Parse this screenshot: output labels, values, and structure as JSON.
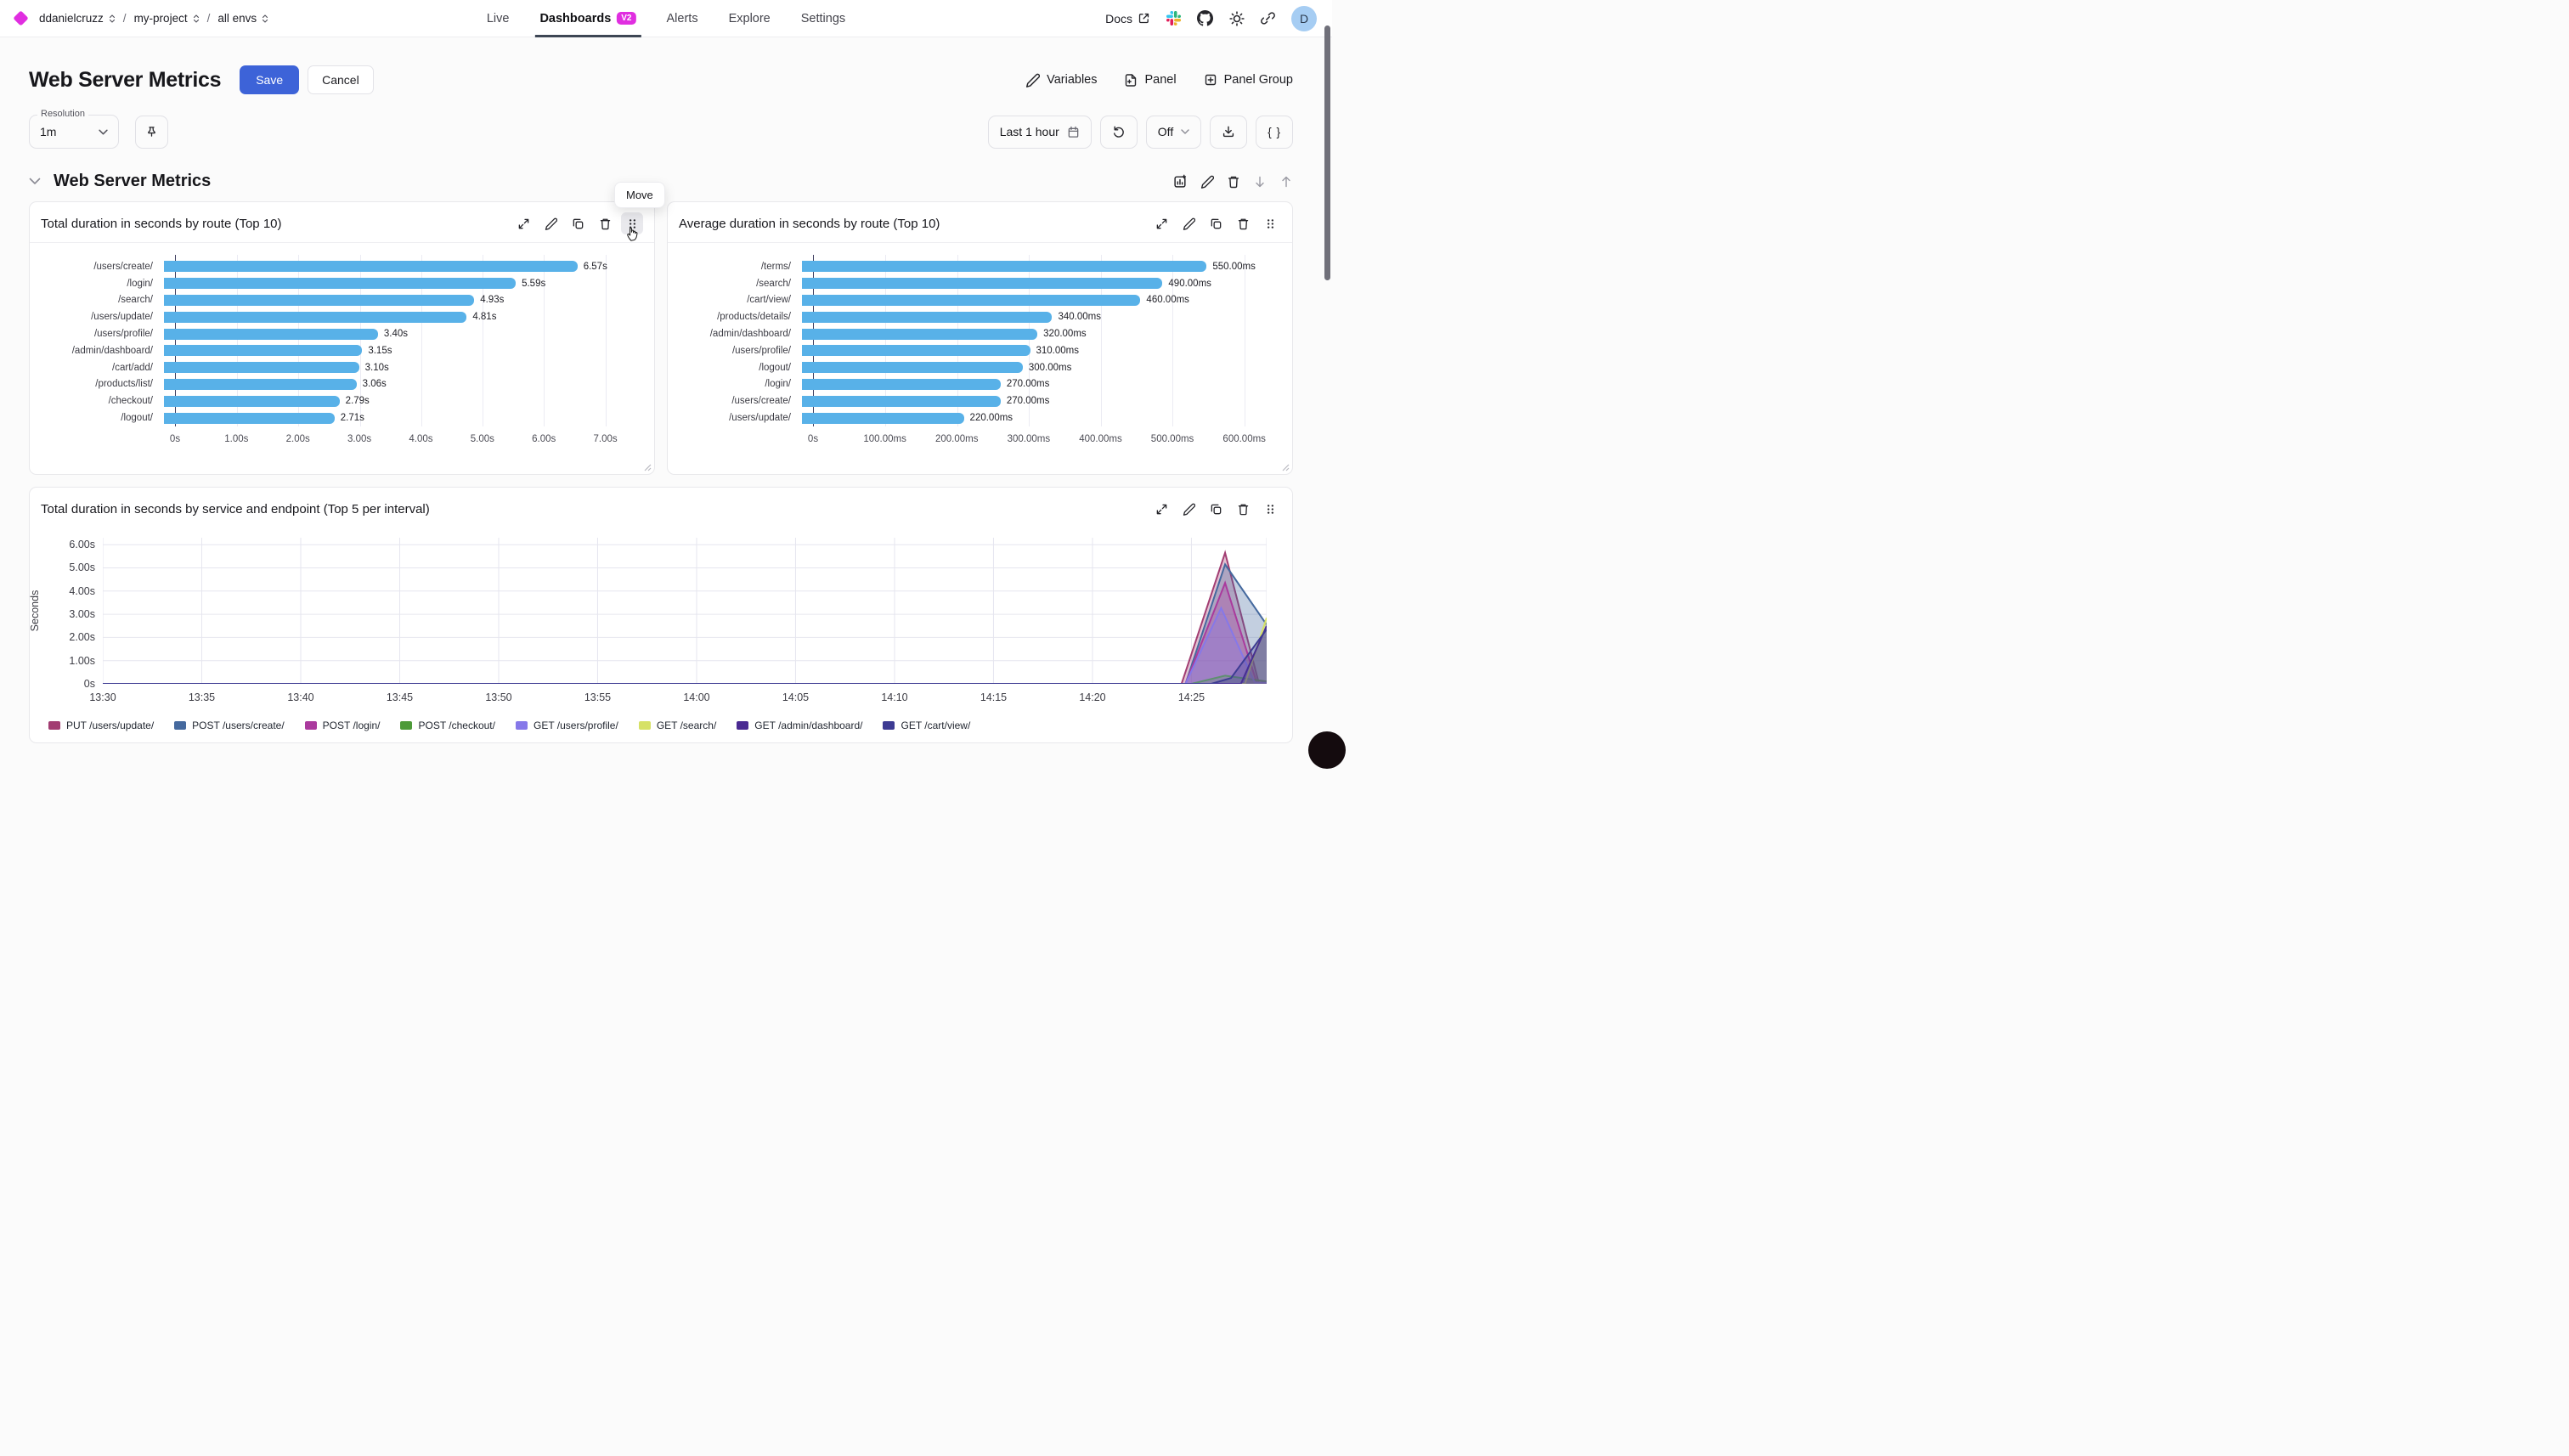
{
  "topbar": {
    "org": "ddanielcruzz",
    "project": "my-project",
    "env": "all envs",
    "tabs": [
      "Live",
      "Dashboards",
      "Alerts",
      "Explore",
      "Settings"
    ],
    "active_tab": "Dashboards",
    "dashboards_badge": "V2",
    "docs": "Docs",
    "avatar_initial": "D"
  },
  "header": {
    "title": "Web Server Metrics",
    "save": "Save",
    "cancel": "Cancel",
    "variables": "Variables",
    "panel": "Panel",
    "panel_group": "Panel Group"
  },
  "toolbar": {
    "resolution_label": "Resolution",
    "resolution_value": "1m",
    "time_range": "Last 1 hour",
    "refresh_state": "Off",
    "code_button": "{ }"
  },
  "section": {
    "title": "Web Server Metrics",
    "move_tooltip": "Move"
  },
  "colors": {
    "accent_blue": "#3d63d8",
    "brand_magenta": "#e02ee0",
    "bar_blue": "#58b1e8",
    "active_tab_underline": "#3d4654"
  },
  "chart_data": [
    {
      "type": "bar",
      "orientation": "horizontal",
      "title": "Total duration in seconds by route (Top 10)",
      "categories": [
        "/users/create/",
        "/login/",
        "/search/",
        "/users/update/",
        "/users/profile/",
        "/admin/dashboard/",
        "/cart/add/",
        "/products/list/",
        "/checkout/",
        "/logout/"
      ],
      "values": [
        6.57,
        5.59,
        4.93,
        4.81,
        3.4,
        3.15,
        3.1,
        3.06,
        2.79,
        2.71
      ],
      "value_labels": [
        "6.57s",
        "5.59s",
        "4.93s",
        "4.81s",
        "3.40s",
        "3.15s",
        "3.10s",
        "3.06s",
        "2.79s",
        "2.71s"
      ],
      "x_ticks": [
        {
          "label": "0s",
          "v": 0
        },
        {
          "label": "1.00s",
          "v": 1
        },
        {
          "label": "2.00s",
          "v": 2
        },
        {
          "label": "3.00s",
          "v": 3
        },
        {
          "label": "4.00s",
          "v": 4
        },
        {
          "label": "5.00s",
          "v": 5
        },
        {
          "label": "6.00s",
          "v": 6
        },
        {
          "label": "7.00s",
          "v": 7
        }
      ],
      "xlim": [
        0,
        7.6
      ],
      "bar_color": "#58b1e8",
      "grid": true
    },
    {
      "type": "bar",
      "orientation": "horizontal",
      "title": "Average duration in seconds by route (Top 10)",
      "categories": [
        "/terms/",
        "/search/",
        "/cart/view/",
        "/products/details/",
        "/admin/dashboard/",
        "/users/profile/",
        "/logout/",
        "/login/",
        "/users/create/",
        "/users/update/"
      ],
      "values": [
        550,
        490,
        460,
        340,
        320,
        310,
        300,
        270,
        270,
        220
      ],
      "value_labels": [
        "550.00ms",
        "490.00ms",
        "460.00ms",
        "340.00ms",
        "320.00ms",
        "310.00ms",
        "300.00ms",
        "270.00ms",
        "270.00ms",
        "220.00ms"
      ],
      "x_ticks": [
        {
          "label": "0s",
          "v": 0
        },
        {
          "label": "100.00ms",
          "v": 100
        },
        {
          "label": "200.00ms",
          "v": 200
        },
        {
          "label": "300.00ms",
          "v": 300
        },
        {
          "label": "400.00ms",
          "v": 400
        },
        {
          "label": "500.00ms",
          "v": 500
        },
        {
          "label": "600.00ms",
          "v": 600
        }
      ],
      "xlim": [
        0,
        650
      ],
      "bar_color": "#58b1e8",
      "grid": true
    },
    {
      "type": "area",
      "title": "Total duration in seconds by service and endpoint (Top 5 per interval)",
      "ylabel": "Seconds",
      "y_ticks": [
        {
          "label": "0s",
          "v": 0
        },
        {
          "label": "1.00s",
          "v": 1
        },
        {
          "label": "2.00s",
          "v": 2
        },
        {
          "label": "3.00s",
          "v": 3
        },
        {
          "label": "4.00s",
          "v": 4
        },
        {
          "label": "5.00s",
          "v": 5
        },
        {
          "label": "6.00s",
          "v": 6
        }
      ],
      "x_ticks": [
        {
          "label": "13:30",
          "v": 0
        },
        {
          "label": "13:35",
          "v": 5
        },
        {
          "label": "13:40",
          "v": 10
        },
        {
          "label": "13:45",
          "v": 15
        },
        {
          "label": "13:50",
          "v": 20
        },
        {
          "label": "13:55",
          "v": 25
        },
        {
          "label": "14:00",
          "v": 30
        },
        {
          "label": "14:05",
          "v": 35
        },
        {
          "label": "14:10",
          "v": 40
        },
        {
          "label": "14:15",
          "v": 45
        },
        {
          "label": "14:20",
          "v": 50
        },
        {
          "label": "14:25",
          "v": 55
        }
      ],
      "xlim": [
        0,
        58.8
      ],
      "ylim": [
        0,
        6.3
      ],
      "grid": true,
      "legend_position": "bottom",
      "series": [
        {
          "name": "PUT /users/update/",
          "color": "#a23d72",
          "points": [
            [
              0,
              0
            ],
            [
              54.5,
              0
            ],
            [
              56.7,
              5.65
            ],
            [
              58.4,
              0.05
            ],
            [
              58.8,
              0.05
            ]
          ]
        },
        {
          "name": "POST /users/create/",
          "color": "#45699e",
          "points": [
            [
              0,
              0
            ],
            [
              54.7,
              0
            ],
            [
              56.7,
              5.15
            ],
            [
              58.8,
              2.55
            ]
          ]
        },
        {
          "name": "POST /login/",
          "color": "#aa3a9d",
          "points": [
            [
              0,
              0
            ],
            [
              54.7,
              0
            ],
            [
              56.7,
              4.35
            ],
            [
              58.3,
              0.05
            ],
            [
              58.8,
              0.05
            ]
          ]
        },
        {
          "name": "POST /checkout/",
          "color": "#4d9a39",
          "points": [
            [
              0,
              0
            ],
            [
              55,
              0
            ],
            [
              56.7,
              0.35
            ],
            [
              58.8,
              0.1
            ]
          ]
        },
        {
          "name": "GET /users/profile/",
          "color": "#8678e9",
          "points": [
            [
              0,
              0
            ],
            [
              54.7,
              0
            ],
            [
              56.5,
              3.27
            ],
            [
              58.2,
              0.05
            ],
            [
              58.8,
              0.05
            ]
          ]
        },
        {
          "name": "GET /search/",
          "color": "#d6e167",
          "points": [
            [
              0,
              0
            ],
            [
              57.7,
              0
            ],
            [
              58.8,
              2.85
            ]
          ]
        },
        {
          "name": "GET /admin/dashboard/",
          "color": "#4a2a92",
          "points": [
            [
              0,
              0
            ],
            [
              57.5,
              0
            ],
            [
              58.8,
              2.5
            ]
          ]
        },
        {
          "name": "GET /cart/view/",
          "color": "#3d3b93",
          "points": [
            [
              0,
              0
            ],
            [
              56,
              0
            ],
            [
              57.0,
              0.25
            ],
            [
              58.8,
              2.35
            ]
          ]
        }
      ]
    }
  ]
}
